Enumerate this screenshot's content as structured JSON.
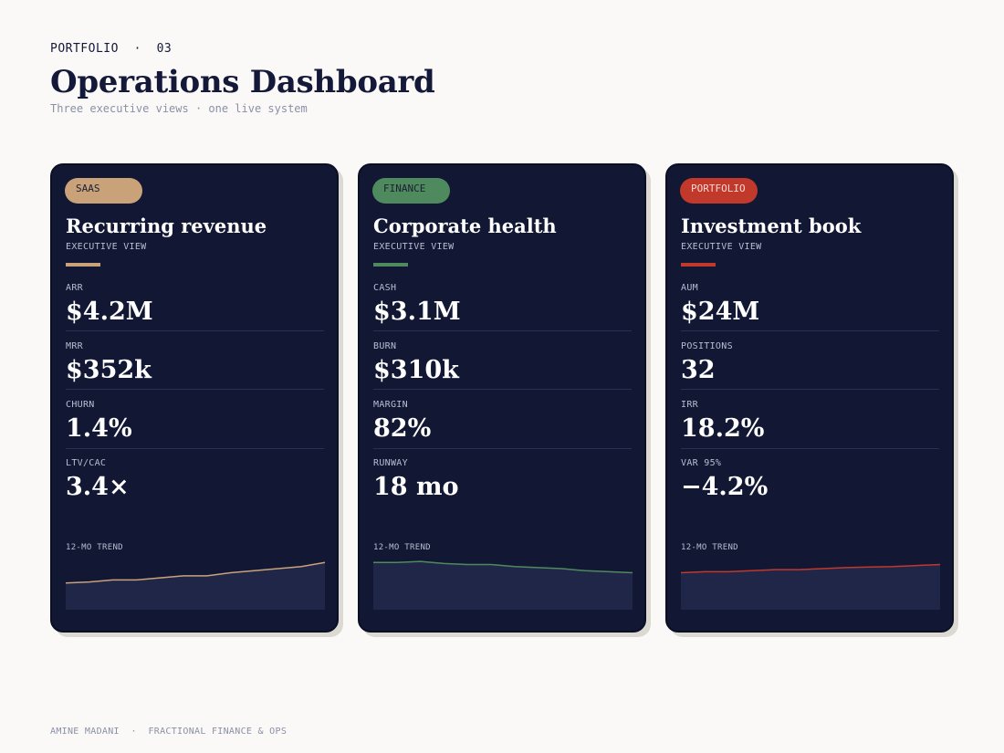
{
  "header": {
    "eyebrow": "PORTFOLIO  ·  03",
    "title": "Operations Dashboard",
    "subtitle": "Three executive views · one live system"
  },
  "cards": [
    {
      "badge": "SAAS",
      "badge_color": "#c9a27a",
      "badge_text_color": "#1b1f33",
      "title": "Recurring revenue",
      "subtitle": "EXECUTIVE VIEW",
      "accent": "#c9a27a",
      "metrics": [
        {
          "label": "ARR",
          "value": "$4.2M"
        },
        {
          "label": "MRR",
          "value": "$352k"
        },
        {
          "label": "CHURN",
          "value": "1.4%"
        },
        {
          "label": "LTV/CAC",
          "value": "3.4×"
        }
      ],
      "trend_label": "12-MO TREND",
      "trend": [
        10,
        11,
        13,
        13,
        15,
        17,
        17,
        20,
        22,
        24,
        26,
        30
      ]
    },
    {
      "badge": "FINANCE",
      "badge_color": "#4f8a5e",
      "badge_text_color": "#1b1f33",
      "title": "Corporate health",
      "subtitle": "EXECUTIVE VIEW",
      "accent": "#4f8a5e",
      "metrics": [
        {
          "label": "CASH",
          "value": "$3.1M"
        },
        {
          "label": "BURN",
          "value": "$310k"
        },
        {
          "label": "MARGIN",
          "value": "82%"
        },
        {
          "label": "RUNWAY",
          "value": "18 mo"
        }
      ],
      "trend_label": "12-MO TREND",
      "trend": [
        30,
        30,
        31,
        29,
        28,
        28,
        26,
        25,
        24,
        22,
        21,
        20
      ]
    },
    {
      "badge": "PORTFOLIO",
      "badge_color": "#c0392b",
      "badge_text_color": "#ffd9d4",
      "title": "Investment book",
      "subtitle": "EXECUTIVE VIEW",
      "accent": "#c0392b",
      "metrics": [
        {
          "label": "AUM",
          "value": "$24M"
        },
        {
          "label": "POSITIONS",
          "value": "32"
        },
        {
          "label": "IRR",
          "value": "18.2%"
        },
        {
          "label": "VAR 95%",
          "value": "−4.2%"
        }
      ],
      "trend_label": "12-MO TREND",
      "trend": [
        20,
        21,
        21,
        22,
        23,
        23,
        24,
        25,
        25.5,
        26,
        27,
        28
      ]
    }
  ],
  "footer": "AMINE MADANI  ·  FRACTIONAL FINANCE & OPS"
}
